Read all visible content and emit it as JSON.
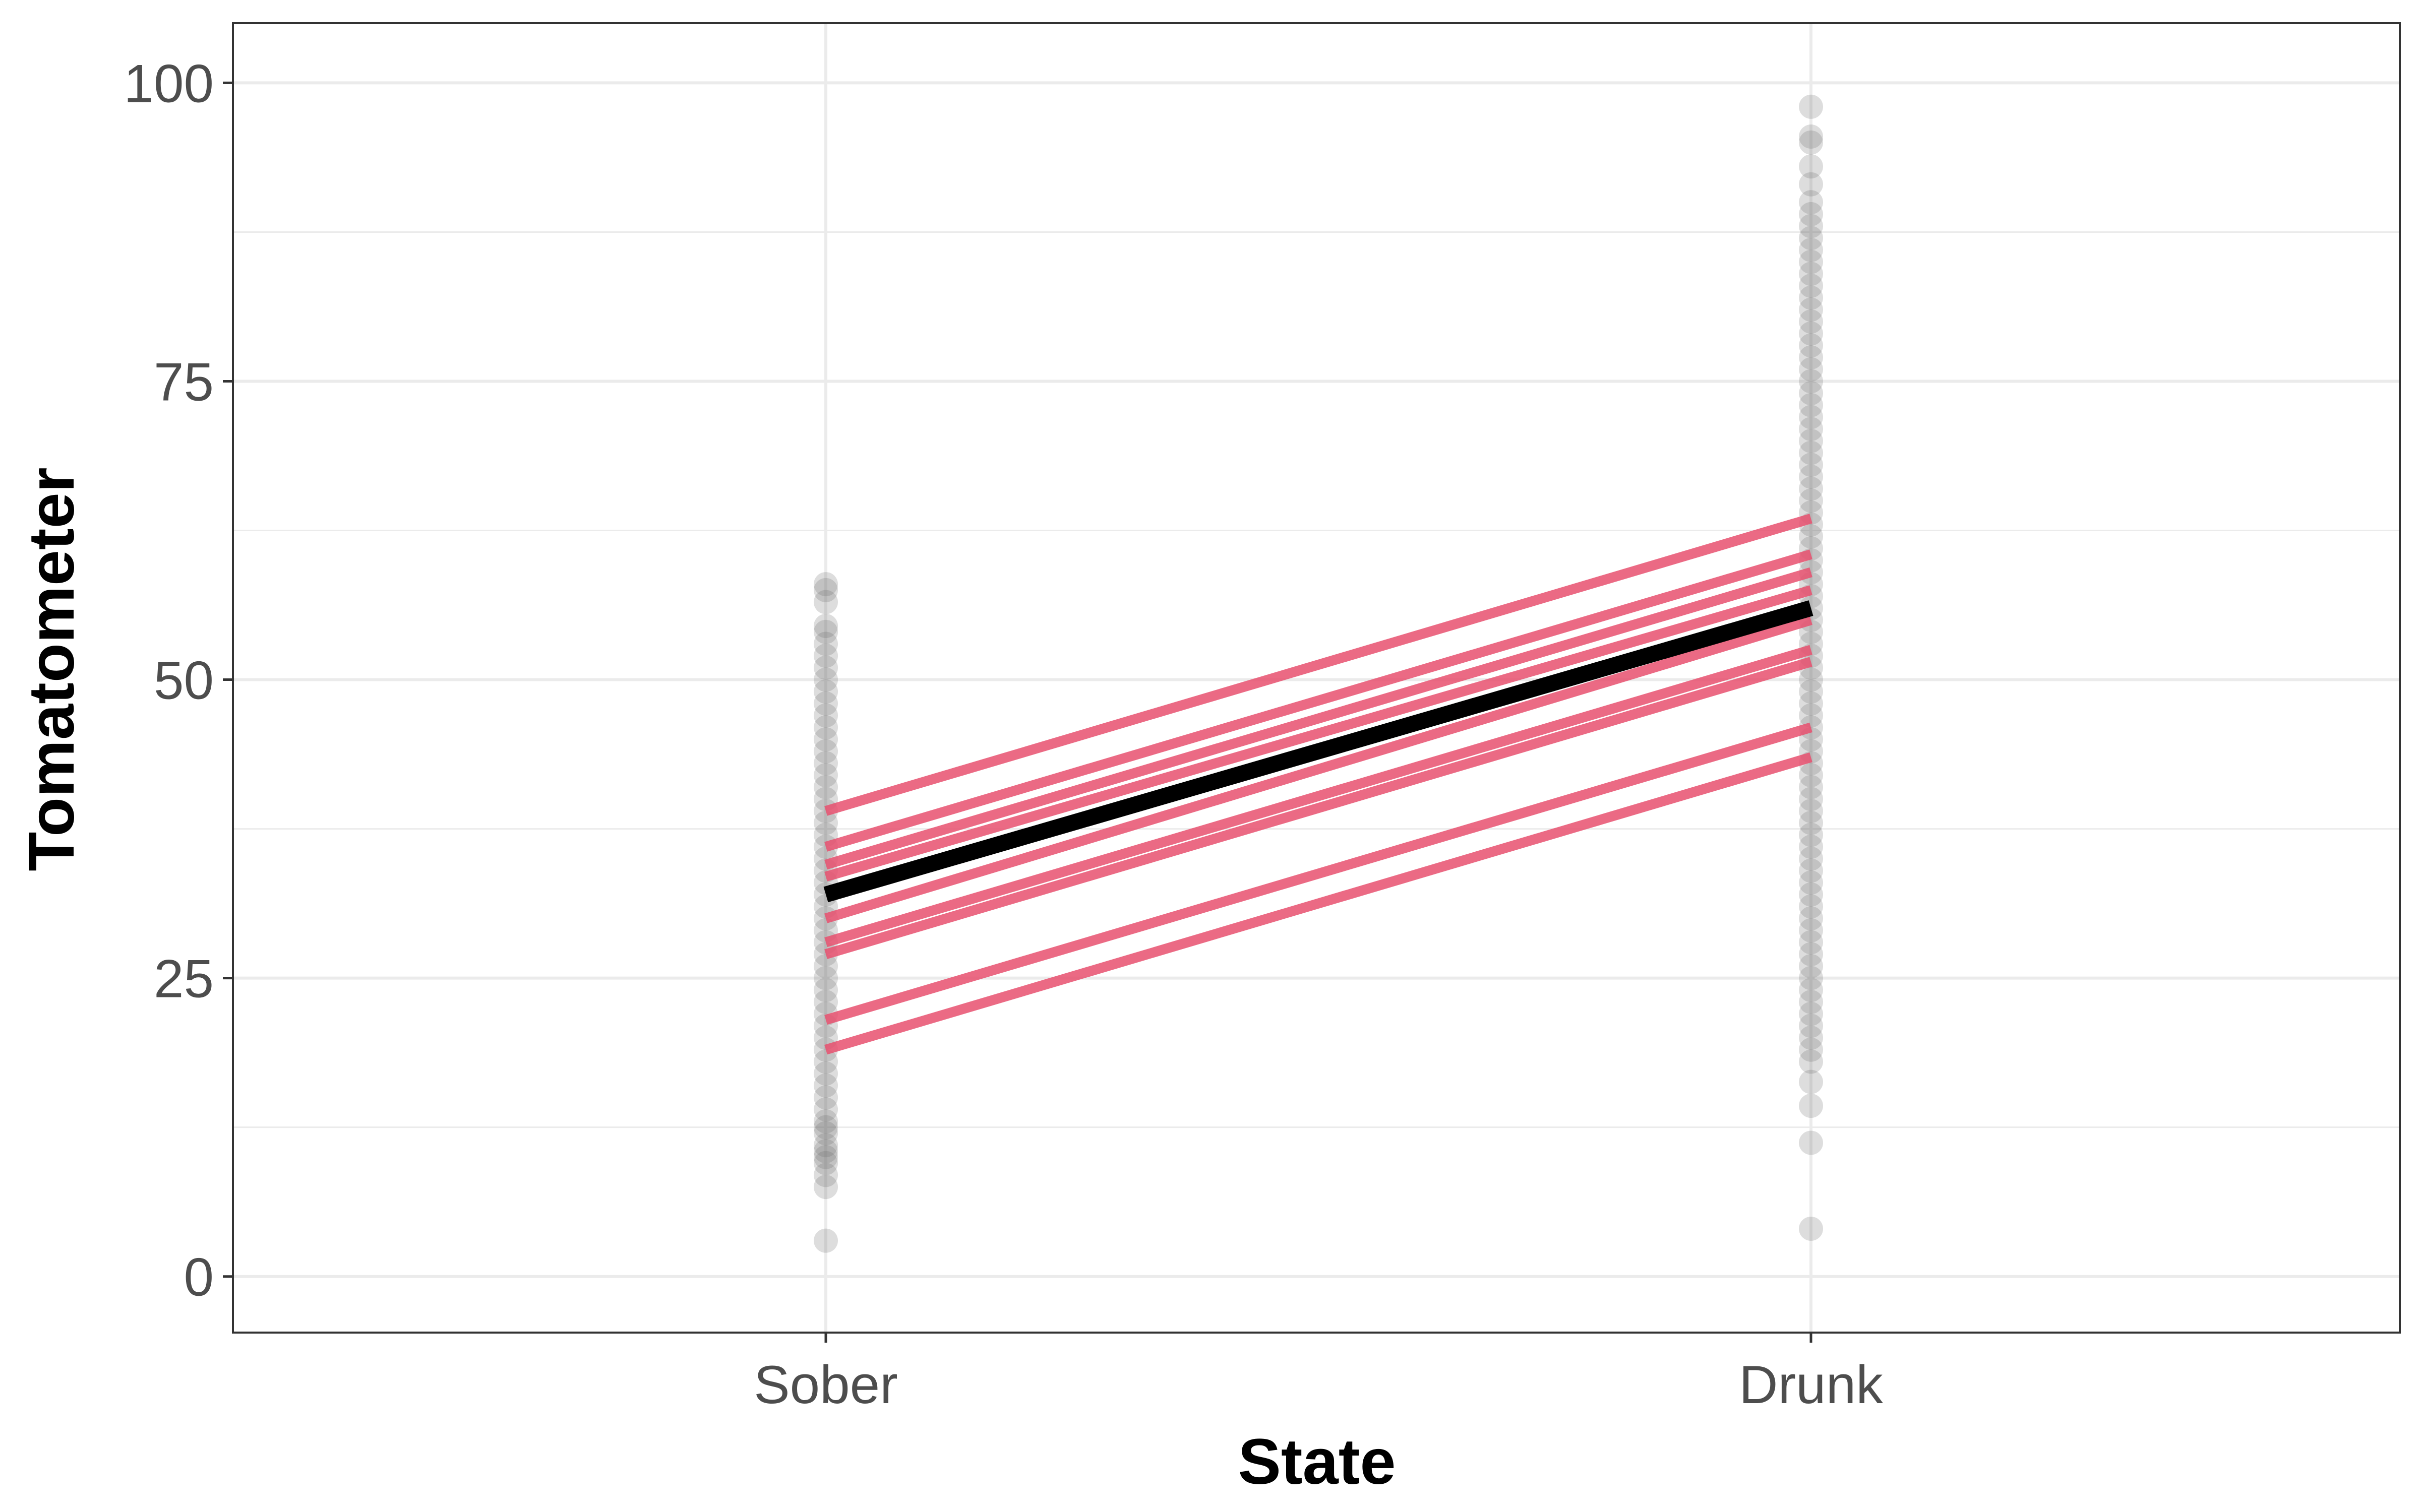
{
  "chart_data": {
    "type": "scatter",
    "xlabel": "State",
    "ylabel": "Tomatometer",
    "categories": [
      "Sober",
      "Drunk"
    ],
    "ylim": [
      -4.7,
      105
    ],
    "y_ticks": [
      {
        "value": 0,
        "label": "0"
      },
      {
        "value": 25,
        "label": "25"
      },
      {
        "value": 50,
        "label": "50"
      },
      {
        "value": 75,
        "label": "75"
      },
      {
        "value": 100,
        "label": "100"
      }
    ],
    "y_minor_ticks": [
      12.5,
      37.5,
      62.5,
      87.5
    ],
    "grid": true,
    "points": {
      "Sober": [
        3,
        7.5,
        8.5,
        9.5,
        10,
        10.5,
        11,
        12,
        12.5,
        13,
        14,
        15,
        16,
        17,
        18,
        19,
        20,
        21,
        22,
        23,
        24,
        25,
        26,
        27,
        28,
        29,
        30,
        31,
        32,
        33,
        34,
        35,
        36,
        37,
        38,
        39,
        40,
        41,
        42,
        43,
        44,
        45,
        46,
        47,
        48,
        49,
        50,
        51,
        52,
        53,
        54,
        54.5,
        56.5,
        57.5,
        58
      ],
      "Drunk": [
        4,
        11.2,
        14.3,
        16.3,
        18,
        19,
        20,
        21,
        22,
        23,
        24,
        25,
        26,
        27,
        28,
        29,
        30,
        31,
        32,
        33,
        34,
        35,
        36,
        37,
        38,
        39,
        40,
        41,
        42,
        43,
        44,
        45,
        46,
        47,
        48,
        49,
        50,
        51,
        52,
        53,
        54,
        55,
        56,
        57,
        58,
        59,
        60,
        61,
        62,
        63,
        64,
        65,
        66,
        67,
        68,
        69,
        70,
        71,
        72,
        73,
        74,
        75,
        76,
        77,
        78,
        79,
        80,
        81,
        82,
        83,
        84,
        85,
        86,
        87,
        88,
        89,
        90,
        91.5,
        93,
        95,
        95.5,
        98
      ]
    },
    "sample_lines": [
      {
        "sober": 39,
        "drunk": 63.5
      },
      {
        "sober": 36,
        "drunk": 60.5
      },
      {
        "sober": 34.5,
        "drunk": 59
      },
      {
        "sober": 33.5,
        "drunk": 57.5
      },
      {
        "sober": 30,
        "drunk": 55
      },
      {
        "sober": 28,
        "drunk": 52.5
      },
      {
        "sober": 27,
        "drunk": 51.5
      },
      {
        "sober": 21.5,
        "drunk": 46
      },
      {
        "sober": 19,
        "drunk": 43.5
      }
    ],
    "mean_line": {
      "sober": 32,
      "drunk": 56
    },
    "colors": {
      "points": "#666666",
      "sample_lines": "#E8506E",
      "mean_line": "#000000",
      "grid": "#ebebeb",
      "panel_border": "#333333"
    }
  }
}
